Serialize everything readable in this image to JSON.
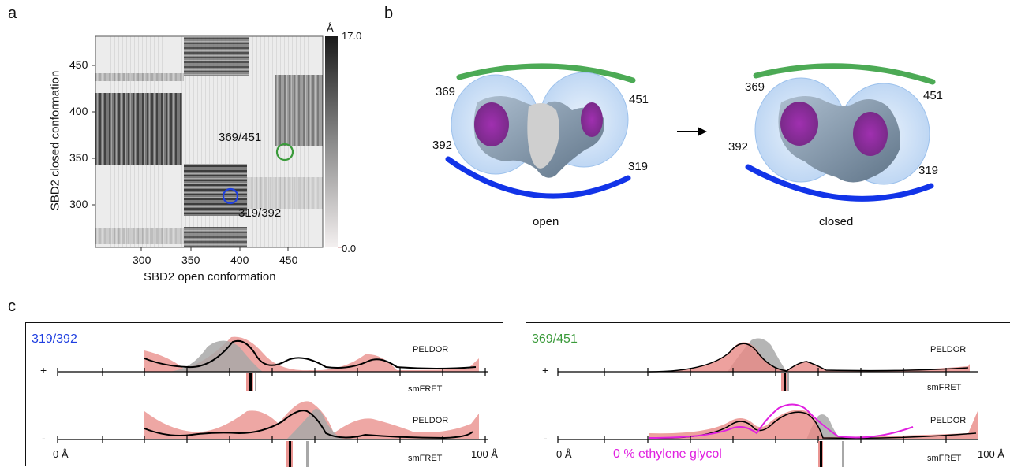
{
  "panels": {
    "a": "a",
    "b": "b",
    "c": "c"
  },
  "panel_a": {
    "xlabel": "SBD2 open conformation",
    "ylabel": "SBD2 closed conformation",
    "xticks": [
      "300",
      "350",
      "400",
      "450"
    ],
    "yticks": [
      "450",
      "400",
      "350",
      "300"
    ],
    "colorbar": {
      "unit": "Å",
      "max": "17.0",
      "min": "0.0"
    },
    "annotations": {
      "pair_a": "369/451",
      "pair_b": "319/392"
    },
    "colors": {
      "pair_a": "#3a9a3a",
      "pair_b": "#1f3fe0"
    }
  },
  "panel_b": {
    "open": {
      "label": "open",
      "r369": "369",
      "r451": "451",
      "r392": "392",
      "r319": "319"
    },
    "closed": {
      "label": "closed",
      "r369": "369",
      "r451": "451",
      "r392": "392",
      "r319": "319"
    },
    "colors": {
      "green_arc": "#4caa55",
      "blue_arc": "#1234e8",
      "sphere": "#9dc4f0",
      "protein": "#8fa8bf",
      "label": "#8a2a9a"
    }
  },
  "panel_c": {
    "left": {
      "title": "319/392",
      "title_color": "#1f3fe0",
      "row1": {
        "sign": "+",
        "peldor": "PELDOR",
        "smfret": "smFRET"
      },
      "row2": {
        "sign": "-",
        "peldor": "PELDOR",
        "smfret": "smFRET"
      },
      "axis_start": "0 Å",
      "axis_end": "100 Å"
    },
    "right": {
      "title": "369/451",
      "title_color": "#3a9a3a",
      "row1": {
        "sign": "+",
        "peldor": "PELDOR",
        "smfret": "smFRET"
      },
      "row2": {
        "sign": "-",
        "peldor": "PELDOR",
        "smfret": "smFRET"
      },
      "axis_start": "0 Å",
      "axis_end": "100 Å",
      "legend": "0 % ethylene glycol",
      "legend_color": "#e020e0"
    },
    "colors": {
      "peldor_band": "#e88a86",
      "gray_fill": "#a8a8a8",
      "fit_line": "#000000",
      "eg_line": "#e020e0"
    }
  }
}
